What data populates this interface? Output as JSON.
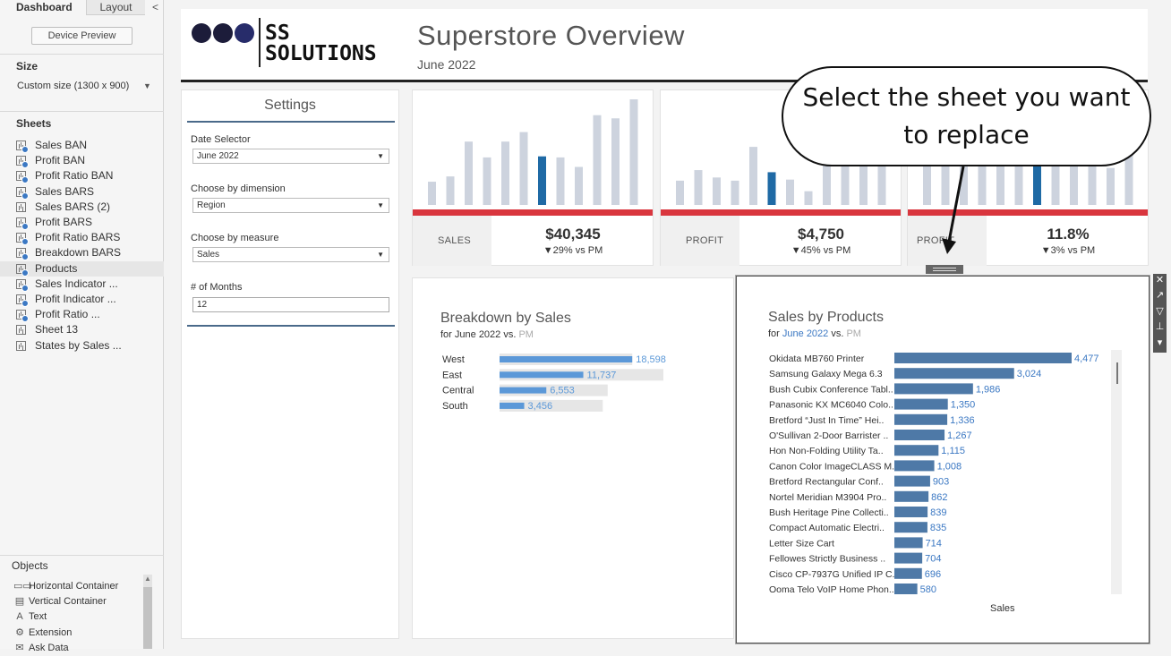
{
  "left_pane": {
    "tabs": [
      {
        "label": "Dashboard"
      },
      {
        "label": "Layout"
      }
    ],
    "collapse_glyph": "<",
    "device_preview": "Device Preview",
    "size_title": "Size",
    "size_value": "Custom size (1300 x 900)",
    "sheets_title": "Sheets",
    "sheets": [
      {
        "label": "Sales BAN",
        "used": true
      },
      {
        "label": "Profit BAN",
        "used": true
      },
      {
        "label": "Profit Ratio BAN",
        "used": true
      },
      {
        "label": "Sales BARS",
        "used": true
      },
      {
        "label": "Sales BARS (2)",
        "used": false
      },
      {
        "label": "Profit BARS",
        "used": true
      },
      {
        "label": "Profit Ratio BARS",
        "used": true
      },
      {
        "label": "Breakdown BARS",
        "used": true
      },
      {
        "label": "Products",
        "used": true,
        "selected": true
      },
      {
        "label": "Sales Indicator ...",
        "used": true
      },
      {
        "label": "Profit Indicator ...",
        "used": true
      },
      {
        "label": "Profit Ratio ...",
        "used": true
      },
      {
        "label": "Sheet 13",
        "used": false
      },
      {
        "label": "States by Sales ...",
        "used": false
      }
    ],
    "objects_title": "Objects",
    "objects": [
      {
        "icon": "horizontal-container-icon",
        "glyph": "▭▭",
        "label": "Horizontal Container"
      },
      {
        "icon": "vertical-container-icon",
        "glyph": "▤",
        "label": "Vertical Container"
      },
      {
        "icon": "text-icon",
        "glyph": "A",
        "label": "Text"
      },
      {
        "icon": "extension-icon",
        "glyph": "⚙",
        "label": "Extension"
      },
      {
        "icon": "ask-data-icon",
        "glyph": "✉",
        "label": "Ask Data"
      }
    ]
  },
  "header": {
    "logo_line1": "SS",
    "logo_line2": "SOLUTIONS",
    "title": "Superstore Overview",
    "subtitle": "June 2022"
  },
  "settings": {
    "title": "Settings",
    "fields": [
      {
        "label": "Date Selector",
        "value": "June 2022",
        "type": "select"
      },
      {
        "label": "Choose by dimension",
        "value": "Region",
        "type": "select"
      },
      {
        "label": "Choose by measure",
        "value": "Sales",
        "type": "select"
      },
      {
        "label": "# of Months",
        "value": "12",
        "type": "input"
      }
    ]
  },
  "kpis": [
    {
      "label": "SALES",
      "value": "$40,345",
      "delta": "▼29% vs PM",
      "bars": [
        0.22,
        0.27,
        0.6,
        0.45,
        0.6,
        0.69,
        0.46,
        0.45,
        0.36,
        0.85,
        0.82,
        1.0
      ],
      "highlight": 6
    },
    {
      "label": "PROFIT",
      "value": "$4,750",
      "delta": "▼45% vs PM",
      "bars": [
        0.23,
        0.33,
        0.26,
        0.23,
        0.55,
        0.31,
        0.24,
        0.13,
        0.54,
        0.47,
        0.53,
        0.5
      ],
      "highlight": 5
    },
    {
      "label": "PROFIT RATIO",
      "value": "11.8%",
      "delta": "▼3% vs PM",
      "bars": [
        0.42,
        0.61,
        0.5,
        0.55,
        0.52,
        0.69,
        0.46,
        0.48,
        0.65,
        0.62,
        0.35,
        0.83
      ],
      "highlight": 6
    }
  ],
  "breakdown": {
    "title": "Breakdown by Sales",
    "sub_prefix": "for ",
    "sub_period": "June 2022",
    "sub_mid": " vs. ",
    "sub_compare": "PM",
    "rows": [
      {
        "label": "West",
        "value": 18598,
        "display": "18,598",
        "pm": 0.81
      },
      {
        "label": "East",
        "value": 11737,
        "display": "11,737",
        "pm": 1.0
      },
      {
        "label": "Central",
        "value": 6553,
        "display": "6,553",
        "pm": 0.66
      },
      {
        "label": "South",
        "value": 3456,
        "display": "3,456",
        "pm": 0.63
      }
    ]
  },
  "products": {
    "title": "Sales by Products",
    "sub_prefix": "for ",
    "sub_period": "June 2022",
    "sub_mid": " vs. ",
    "sub_compare": "PM",
    "axis_label": "Sales",
    "rows": [
      {
        "label": "Okidata MB760 Printer",
        "value": 4477,
        "display": "4,477"
      },
      {
        "label": "Samsung Galaxy Mega 6.3",
        "value": 3024,
        "display": "3,024"
      },
      {
        "label": "Bush Cubix Conference Tabl..",
        "value": 1986,
        "display": "1,986"
      },
      {
        "label": "Panasonic KX MC6040 Colo..",
        "value": 1350,
        "display": "1,350"
      },
      {
        "label": "Bretford “Just In Time” Hei..",
        "value": 1336,
        "display": "1,336"
      },
      {
        "label": "O'Sullivan 2-Door Barrister ..",
        "value": 1267,
        "display": "1,267"
      },
      {
        "label": "Hon Non-Folding Utility Ta..",
        "value": 1115,
        "display": "1,115"
      },
      {
        "label": "Canon Color ImageCLASS M..",
        "value": 1008,
        "display": "1,008"
      },
      {
        "label": "Bretford Rectangular Conf..",
        "value": 903,
        "display": "903"
      },
      {
        "label": "Nortel Meridian M3904 Pro..",
        "value": 862,
        "display": "862"
      },
      {
        "label": "Bush Heritage Pine Collecti..",
        "value": 839,
        "display": "839"
      },
      {
        "label": "Compact Automatic Electri..",
        "value": 835,
        "display": "835"
      },
      {
        "label": "Letter Size Cart",
        "value": 714,
        "display": "714"
      },
      {
        "label": "Fellowes Strictly Business ..",
        "value": 704,
        "display": "704"
      },
      {
        "label": "Cisco CP-7937G Unified IP C..",
        "value": 696,
        "display": "696"
      },
      {
        "label": "Ooma Telo VoIP Home Phon..",
        "value": 580,
        "display": "580"
      }
    ]
  },
  "toolbar_icons": [
    {
      "name": "close-icon",
      "glyph": "✕"
    },
    {
      "name": "go-to-sheet-icon",
      "glyph": "↗"
    },
    {
      "name": "filter-icon",
      "glyph": "▽"
    },
    {
      "name": "pin-icon",
      "glyph": "⊥"
    },
    {
      "name": "more-options-icon",
      "glyph": "▾"
    }
  ],
  "callout": {
    "line1": "Select the sheet you want",
    "line2": "to replace"
  },
  "colors": {
    "accent": "#3b78c3",
    "bar_dark": "#4e79a7",
    "bar_light": "#cdd3de",
    "highlight_bar": "#1f6aa5",
    "red": "#d9363e"
  }
}
